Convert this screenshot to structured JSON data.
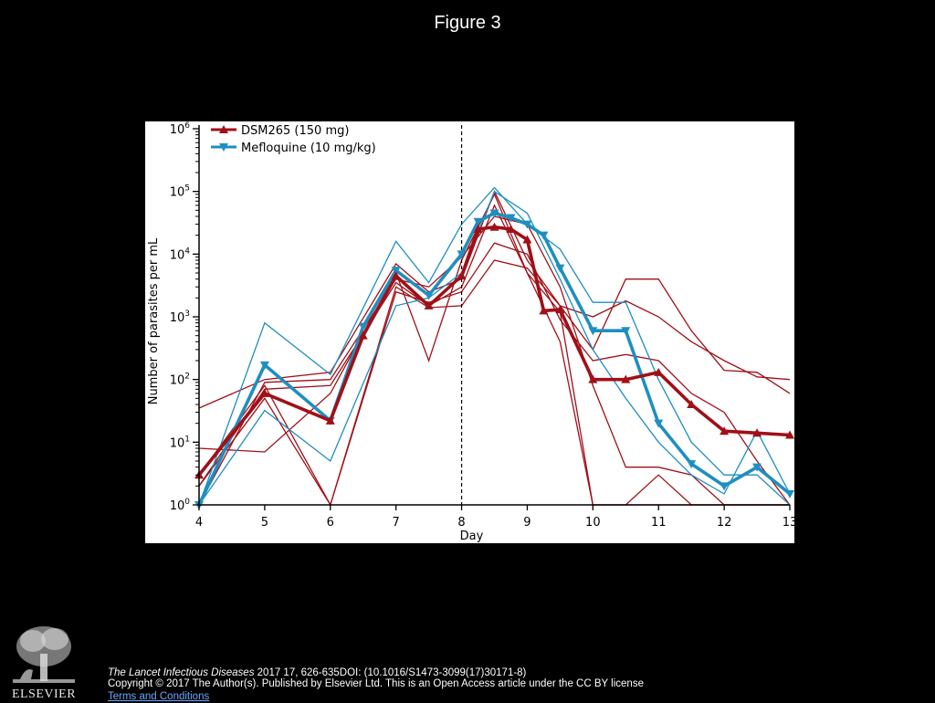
{
  "slide": {
    "title": "Figure 3",
    "citation_journal": "The Lancet Infectious Diseases",
    "citation_rest": " 2017 17, 626-635DOI: (10.1016/S1473-3099(17)30171-8)",
    "copyright": "Copyright © 2017 The Author(s). Published by Elsevier Ltd. This is an Open Access article under the CC BY license ",
    "terms_link": "Terms and Conditions",
    "publisher_logo_text": "ELSEVIER"
  },
  "chart_data": {
    "type": "line",
    "xlabel": "Day",
    "ylabel": "Number of parasites per mL",
    "xlim": [
      4,
      13
    ],
    "ylim": [
      1,
      1000000
    ],
    "yscale": "log",
    "x_ticks": [
      4,
      5,
      6,
      7,
      8,
      9,
      10,
      11,
      12,
      13
    ],
    "y_ticks": [
      {
        "value": 1,
        "base": "10",
        "exp": "0"
      },
      {
        "value": 10,
        "base": "10",
        "exp": "1"
      },
      {
        "value": 100,
        "base": "10",
        "exp": "2"
      },
      {
        "value": 1000,
        "base": "10",
        "exp": "3"
      },
      {
        "value": 10000,
        "base": "10",
        "exp": "4"
      },
      {
        "value": 100000,
        "base": "10",
        "exp": "5"
      },
      {
        "value": 1000000,
        "base": "10",
        "exp": "6"
      }
    ],
    "vline": {
      "x": 8,
      "style": "dashed"
    },
    "legend_position": "top-left",
    "series": [
      {
        "name": "DSM265 (150 mg)",
        "color": "#a01018",
        "marker": "triangle-up",
        "role": "median",
        "x": [
          4,
          5,
          6,
          6.5,
          7,
          7.5,
          8,
          8.25,
          8.5,
          8.75,
          9,
          9.25,
          9.5,
          10,
          10.5,
          11,
          11.5,
          12,
          12.5,
          13
        ],
        "y": [
          3,
          60,
          22,
          500,
          4500,
          1500,
          4500,
          25000,
          27000,
          25000,
          17000,
          1250,
          1300,
          100,
          100,
          130,
          40,
          15,
          14,
          13
        ]
      },
      {
        "name": "Mefloquine (10 mg/kg)",
        "color": "#1e8fbf",
        "marker": "triangle-down",
        "role": "median",
        "x": [
          4,
          5,
          6,
          6.5,
          7,
          7.5,
          8,
          8.25,
          8.5,
          8.75,
          9,
          9.25,
          9.5,
          10,
          10.5,
          11,
          11.5,
          12,
          12.5,
          13
        ],
        "y": [
          1,
          170,
          22,
          700,
          5500,
          2200,
          10000,
          33000,
          45000,
          38000,
          30000,
          20000,
          6000,
          600,
          600,
          20,
          4.5,
          2,
          4,
          1.5
        ]
      },
      {
        "color": "#a01018",
        "role": "individual",
        "x": [
          4,
          5,
          6,
          7,
          7.5,
          8,
          8.5,
          9,
          9.5,
          10,
          10.5,
          11,
          11.5,
          12,
          12.5,
          13
        ],
        "y": [
          8,
          7,
          60,
          5000,
          200,
          8000,
          90000,
          5000,
          400,
          1,
          1,
          1,
          1,
          1,
          1,
          1
        ]
      },
      {
        "color": "#a01018",
        "role": "individual",
        "x": [
          4,
          5,
          6,
          7,
          7.5,
          8,
          8.5,
          9,
          9.5,
          10,
          10.5,
          11,
          11.5,
          12,
          12.5,
          13
        ],
        "y": [
          35,
          100,
          130,
          7000,
          2500,
          4000,
          100000,
          8000,
          1500,
          300,
          4000,
          4000,
          600,
          140,
          130,
          60
        ]
      },
      {
        "color": "#a01018",
        "role": "individual",
        "x": [
          4,
          5,
          6,
          7,
          7.5,
          8,
          8.5,
          9,
          9.5,
          10,
          10.5,
          11,
          11.5,
          12,
          12.5,
          13
        ],
        "y": [
          3,
          80,
          1,
          3000,
          1400,
          1500,
          8000,
          6000,
          1500,
          1000,
          1800,
          1000,
          400,
          200,
          110,
          100
        ]
      },
      {
        "color": "#a01018",
        "role": "individual",
        "x": [
          4,
          5,
          6,
          7,
          7.5,
          8,
          8.5,
          9,
          9.5,
          10,
          10.5,
          11,
          11.5,
          12,
          12.5,
          13
        ],
        "y": [
          2,
          50,
          1,
          2500,
          1700,
          2500,
          15000,
          10000,
          900,
          200,
          250,
          200,
          60,
          30,
          5,
          1
        ]
      },
      {
        "color": "#a01018",
        "role": "individual",
        "x": [
          4,
          5,
          6,
          7,
          7.5,
          8,
          8.5,
          9,
          9.5,
          10,
          10.5,
          11,
          11.5,
          12,
          12.5,
          13
        ],
        "y": [
          1,
          90,
          100,
          4000,
          3000,
          9000,
          40000,
          30000,
          3000,
          80,
          4,
          4,
          3,
          1,
          1,
          1
        ]
      },
      {
        "color": "#a01018",
        "role": "individual",
        "x": [
          4,
          5,
          6,
          7,
          7.5,
          8,
          8.5,
          9,
          9.5,
          10,
          10.5,
          11,
          11.5,
          12,
          12.5,
          13
        ],
        "y": [
          2,
          70,
          80,
          3500,
          1500,
          3000,
          60000,
          5000,
          1200,
          1,
          1,
          3,
          1,
          1,
          1,
          1
        ]
      },
      {
        "color": "#1e8fbf",
        "role": "individual",
        "x": [
          4,
          5,
          6,
          7,
          7.5,
          8,
          8.5,
          9,
          9.5,
          10,
          10.5,
          11,
          11.5,
          12,
          12.5,
          13
        ],
        "y": [
          1,
          800,
          120,
          16000,
          3500,
          30000,
          115000,
          30000,
          12000,
          1700,
          1700,
          100,
          10,
          3,
          3,
          1
        ]
      },
      {
        "color": "#1e8fbf",
        "role": "individual",
        "x": [
          4,
          5,
          6,
          7,
          7.5,
          8,
          8.5,
          9,
          9.5,
          10,
          10.5,
          11,
          11.5,
          12,
          12.5,
          13
        ],
        "y": [
          1,
          32,
          5,
          1500,
          2000,
          5000,
          100000,
          45000,
          4000,
          300,
          50,
          10,
          3,
          1.5,
          15,
          1.5
        ]
      }
    ]
  }
}
